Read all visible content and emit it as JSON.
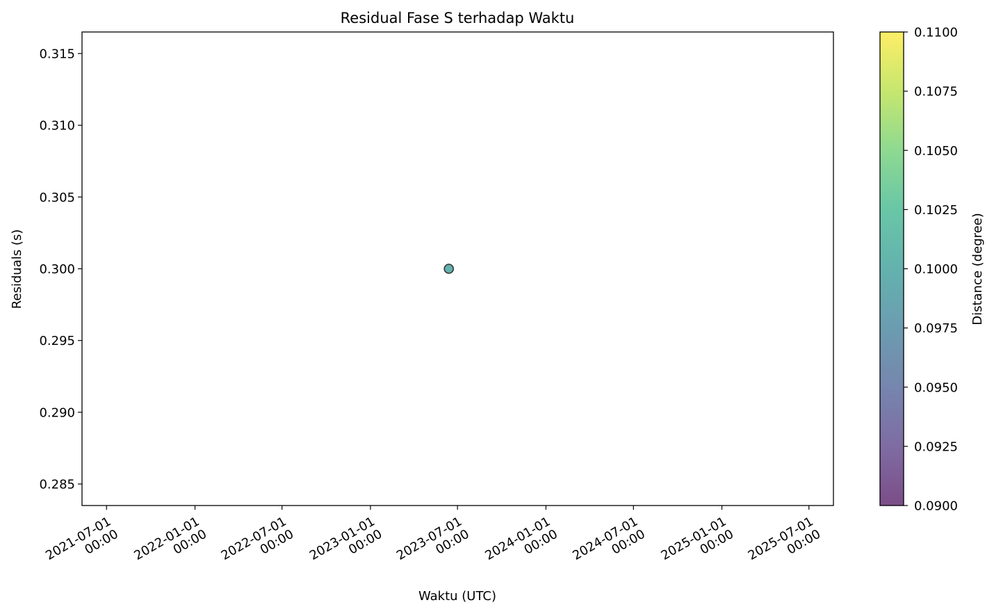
{
  "chart_data": {
    "type": "scatter",
    "title": "Residual Fase S terhadap Waktu",
    "xlabel": "Waktu (UTC)",
    "ylabel": "Residuals (s)",
    "x_scale": "time",
    "xlim": [
      "2021-05-11",
      "2025-08-21"
    ],
    "ylim": [
      0.2835,
      0.3165
    ],
    "x_ticks": [
      {
        "date": "2021-07-01",
        "line1": "2021-07-01",
        "line2": "00:00"
      },
      {
        "date": "2022-01-01",
        "line1": "2022-01-01",
        "line2": "00:00"
      },
      {
        "date": "2022-07-01",
        "line1": "2022-07-01",
        "line2": "00:00"
      },
      {
        "date": "2023-01-01",
        "line1": "2023-01-01",
        "line2": "00:00"
      },
      {
        "date": "2023-07-01",
        "line1": "2023-07-01",
        "line2": "00:00"
      },
      {
        "date": "2024-01-01",
        "line1": "2024-01-01",
        "line2": "00:00"
      },
      {
        "date": "2024-07-01",
        "line1": "2024-07-01",
        "line2": "00:00"
      },
      {
        "date": "2025-01-01",
        "line1": "2025-01-01",
        "line2": "00:00"
      },
      {
        "date": "2025-07-01",
        "line1": "2025-07-01",
        "line2": "00:00"
      }
    ],
    "y_ticks": [
      0.285,
      0.29,
      0.295,
      0.3,
      0.305,
      0.31,
      0.315
    ],
    "y_tick_labels": [
      "0.285",
      "0.290",
      "0.295",
      "0.300",
      "0.305",
      "0.310",
      "0.315"
    ],
    "points": [
      {
        "x": "2023-06-13",
        "y": 0.3,
        "distance": 0.1
      }
    ],
    "grid": false,
    "colorbar": {
      "label": "Distance (degree)",
      "colormap": "viridis",
      "alpha": 0.7,
      "range": [
        0.09,
        0.11
      ],
      "ticks": [
        0.09,
        0.0925,
        0.095,
        0.0975,
        0.1,
        0.1025,
        0.105,
        0.1075,
        0.11
      ],
      "tick_labels": [
        "0.0900",
        "0.0925",
        "0.0950",
        "0.0975",
        "0.1000",
        "0.1025",
        "0.1050",
        "0.1075",
        "0.1100"
      ]
    },
    "colors": {
      "point_edge": "#333333",
      "axis": "#000000"
    }
  }
}
